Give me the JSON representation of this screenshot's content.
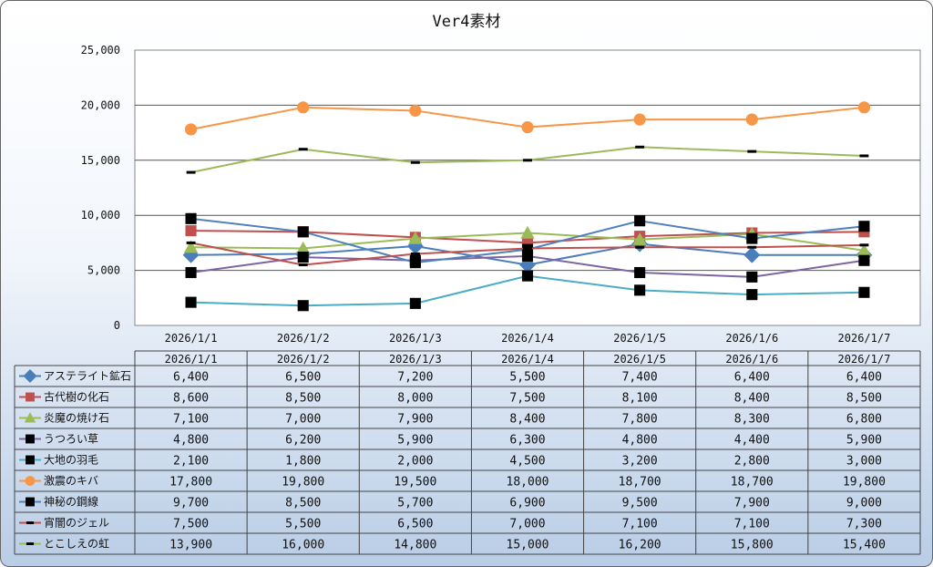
{
  "chart_data": {
    "type": "line",
    "title": "Ver4素材",
    "categories": [
      "2026/1/1",
      "2026/1/2",
      "2026/1/3",
      "2026/1/4",
      "2026/1/5",
      "2026/1/6",
      "2026/1/7"
    ],
    "ylim": [
      0,
      25000
    ],
    "yticks": [
      "0",
      "5,000",
      "10,000",
      "15,000",
      "20,000",
      "25,000"
    ],
    "ytick_values": [
      0,
      5000,
      10000,
      15000,
      20000,
      25000
    ],
    "grid": true,
    "legend": "data-table-below",
    "series": [
      {
        "name": "アステライト鉱石",
        "color": "#4a7ebb",
        "marker": "diamond",
        "values": [
          6400,
          6500,
          7200,
          5500,
          7400,
          6400,
          6400
        ],
        "labels": [
          "6,400",
          "6,500",
          "7,200",
          "5,500",
          "7,400",
          "6,400",
          "6,400"
        ]
      },
      {
        "name": "古代樹の化石",
        "color": "#c0504d",
        "marker": "square",
        "values": [
          8600,
          8500,
          8000,
          7500,
          8100,
          8400,
          8500
        ],
        "labels": [
          "8,600",
          "8,500",
          "8,000",
          "7,500",
          "8,100",
          "8,400",
          "8,500"
        ]
      },
      {
        "name": "炎魔の焼け石",
        "color": "#9bbb59",
        "marker": "triangle",
        "values": [
          7100,
          7000,
          7900,
          8400,
          7800,
          8300,
          6800
        ],
        "labels": [
          "7,100",
          "7,000",
          "7,900",
          "8,400",
          "7,800",
          "8,300",
          "6,800"
        ]
      },
      {
        "name": "うつろい草",
        "color": "#8064a2",
        "marker": "square-black",
        "values": [
          4800,
          6200,
          5900,
          6300,
          4800,
          4400,
          5900
        ],
        "labels": [
          "4,800",
          "6,200",
          "5,900",
          "6,300",
          "4,800",
          "4,400",
          "5,900"
        ]
      },
      {
        "name": "大地の羽毛",
        "color": "#4bacc6",
        "marker": "square-black",
        "values": [
          2100,
          1800,
          2000,
          4500,
          3200,
          2800,
          3000
        ],
        "labels": [
          "2,100",
          "1,800",
          "2,000",
          "4,500",
          "3,200",
          "2,800",
          "3,000"
        ]
      },
      {
        "name": "激震のキバ",
        "color": "#f79646",
        "marker": "circle",
        "values": [
          17800,
          19800,
          19500,
          18000,
          18700,
          18700,
          19800
        ],
        "labels": [
          "17,800",
          "19,800",
          "19,500",
          "18,000",
          "18,700",
          "18,700",
          "19,800"
        ]
      },
      {
        "name": "神秘の鋼線",
        "color": "#4f81bd",
        "marker": "square-black",
        "values": [
          9700,
          8500,
          5700,
          6900,
          9500,
          7900,
          9000
        ],
        "labels": [
          "9,700",
          "8,500",
          "5,700",
          "6,900",
          "9,500",
          "7,900",
          "9,000"
        ]
      },
      {
        "name": "宵闇のジェル",
        "color": "#c0504d",
        "marker": "dash",
        "values": [
          7500,
          5500,
          6500,
          7000,
          7100,
          7100,
          7300
        ],
        "labels": [
          "7,500",
          "5,500",
          "6,500",
          "7,000",
          "7,100",
          "7,100",
          "7,300"
        ]
      },
      {
        "name": "とこしえの虹",
        "color": "#9bbb59",
        "marker": "dash",
        "values": [
          13900,
          16000,
          14800,
          15000,
          16200,
          15800,
          15400
        ],
        "labels": [
          "13,900",
          "16,000",
          "14,800",
          "15,000",
          "16,200",
          "15,800",
          "15,400"
        ]
      }
    ]
  }
}
